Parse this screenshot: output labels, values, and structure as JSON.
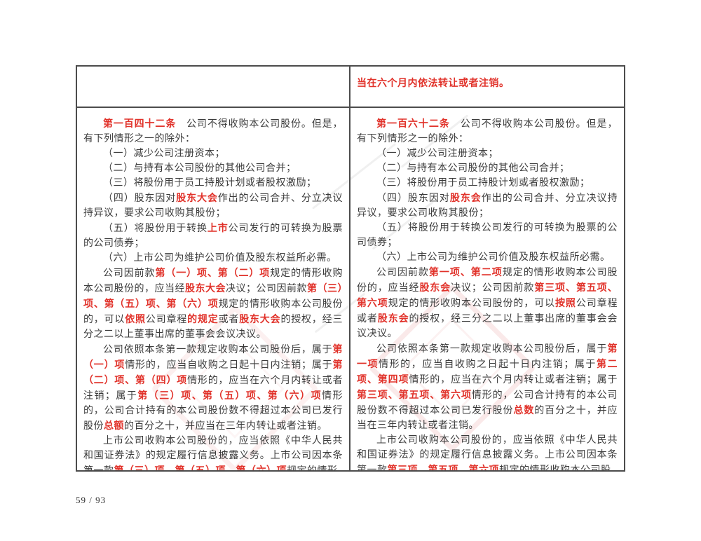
{
  "page": {
    "footer": "59 / 93"
  },
  "colors": {
    "highlight": "#e1322a",
    "body_text": "#3b3b3b",
    "border": "#4c4c4c",
    "seal_watermark": "#e27474"
  },
  "table": {
    "rows": [
      {
        "left": [],
        "right": [
          {
            "indent": false,
            "runs": [
              {
                "t": "当在六个月内依法转让或者注销。",
                "red": true
              }
            ]
          }
        ]
      },
      {
        "left": [
          {
            "runs": [
              {
                "t": "第一百四十二条",
                "red": true
              },
              {
                "t": "　公司不得收购本公司股份。但是，有下列情形之一的除外："
              }
            ]
          },
          {
            "runs": [
              {
                "t": "（一）减少公司注册资本；"
              }
            ]
          },
          {
            "runs": [
              {
                "t": "（二）与持有本公司股份的其他公司合并；"
              }
            ]
          },
          {
            "runs": [
              {
                "t": "（三）将股份用于员工持股计划或者股权激励；"
              }
            ]
          },
          {
            "runs": [
              {
                "t": "（四）股东因对"
              },
              {
                "t": "股东大会",
                "red": true
              },
              {
                "t": "作出的公司合并、分立决议持异议，要求公司收购其股份；"
              }
            ]
          },
          {
            "runs": [
              {
                "t": "（五）将股份用于转换"
              },
              {
                "t": "上市",
                "red": true
              },
              {
                "t": "公司发行的可转换为股票的公司债券；"
              }
            ]
          },
          {
            "runs": [
              {
                "t": "（六）上市公司为维护公司价值及股东权益所必需。"
              }
            ]
          },
          {
            "runs": [
              {
                "t": "公司因前款"
              },
              {
                "t": "第（一）项、第（二）项",
                "red": true
              },
              {
                "t": "规定的情形收购本公司股份的，应当经"
              },
              {
                "t": "股东大会",
                "red": true
              },
              {
                "t": "决议；公司因前款"
              },
              {
                "t": "第（三）项、第（五）项、第（六）项",
                "red": true
              },
              {
                "t": "规定的情形收购本公司股份的，可以"
              },
              {
                "t": "依照",
                "red": true
              },
              {
                "t": "公司章程"
              },
              {
                "t": "的规定",
                "red": true
              },
              {
                "t": "或者"
              },
              {
                "t": "股东大会",
                "red": true
              },
              {
                "t": "的授权，经三分之二以上董事出席的董事会会议决议。"
              }
            ]
          },
          {
            "runs": [
              {
                "t": "公司依照本条第一款规定收购本公司股份后，属于"
              },
              {
                "t": "第（一）项",
                "red": true
              },
              {
                "t": "情形的，应当自收购之日起十日内注销；属于"
              },
              {
                "t": "第（二）项、第（四）项",
                "red": true
              },
              {
                "t": "情形的，应当在六个月内转让或者注销；属于"
              },
              {
                "t": "第（三）项、第（五）项、第（六）项",
                "red": true
              },
              {
                "t": "情形的，公司合计持有的本公司股份数不得超过本公司已发行股份"
              },
              {
                "t": "总额",
                "red": true
              },
              {
                "t": "的百分之十，并应当在三年内转让或者注销。"
              }
            ]
          },
          {
            "runs": [
              {
                "t": "上市公司收购本公司股份的，应当依照《中华人民共和国证券法》的规定履行信息披露义务。上市公司因本条第一款"
              },
              {
                "t": "第（三）项、第（五）项、第（六）项",
                "red": true
              },
              {
                "t": "规定的情形"
              }
            ]
          }
        ],
        "right": [
          {
            "runs": [
              {
                "t": "第一百六十二条",
                "red": true
              },
              {
                "t": "　公司不得收购本公司股份。但是，有下列情形之一的除外："
              }
            ]
          },
          {
            "runs": [
              {
                "t": "（一）减少公司注册资本；"
              }
            ]
          },
          {
            "runs": [
              {
                "t": "（二）与持有本公司股份的其他公司合并；"
              }
            ]
          },
          {
            "runs": [
              {
                "t": "（三）将股份用于员工持股计划或者股权激励；"
              }
            ]
          },
          {
            "runs": [
              {
                "t": "（四）股东因对"
              },
              {
                "t": "股东会",
                "red": true
              },
              {
                "t": "作出的公司合并、分立决议持异议，要求公司收购其股份；"
              }
            ]
          },
          {
            "runs": [
              {
                "t": "（五）将股份用于转换公司发行的可转换为股票的公司债券；"
              }
            ]
          },
          {
            "runs": [
              {
                "t": "（六）上市公司为维护公司价值及股东权益所必需。"
              }
            ]
          },
          {
            "runs": [
              {
                "t": "公司因前款"
              },
              {
                "t": "第一项、第二项",
                "red": true
              },
              {
                "t": "规定的情形收购本公司股份的，应当经"
              },
              {
                "t": "股东会",
                "red": true
              },
              {
                "t": "决议；公司因前款"
              },
              {
                "t": "第三项、第五项、第六项",
                "red": true
              },
              {
                "t": "规定的情形收购本公司股份的，可以"
              },
              {
                "t": "按照",
                "red": true
              },
              {
                "t": "公司章程或者"
              },
              {
                "t": "股东会",
                "red": true
              },
              {
                "t": "的授权，经三分之二以上董事出席的董事会会议决议。"
              }
            ]
          },
          {
            "runs": [
              {
                "t": "公司依照本条第一款规定收购本公司股份后，属于"
              },
              {
                "t": "第一项",
                "red": true
              },
              {
                "t": "情形的，应当自收购之日起十日内注销；属于"
              },
              {
                "t": "第二项、第四项",
                "red": true
              },
              {
                "t": "情形的，应当在六个月内转让或者注销；属于"
              },
              {
                "t": "第三项、第五项、第六项",
                "red": true
              },
              {
                "t": "情形的，公司合计持有的本公司股份数不得超过本公司已发行股份"
              },
              {
                "t": "总数",
                "red": true
              },
              {
                "t": "的百分之十，并应当在三年内转让或者注销。"
              }
            ]
          },
          {
            "runs": [
              {
                "t": "上市公司收购本公司股份的，应当依照《中华人民共和国证券法》的规定履行信息披露义务。上市公司因本条第一款"
              },
              {
                "t": "第三项、第五项、第六项",
                "red": true
              },
              {
                "t": "规定的情形收购本公司股"
              }
            ]
          }
        ]
      }
    ]
  }
}
